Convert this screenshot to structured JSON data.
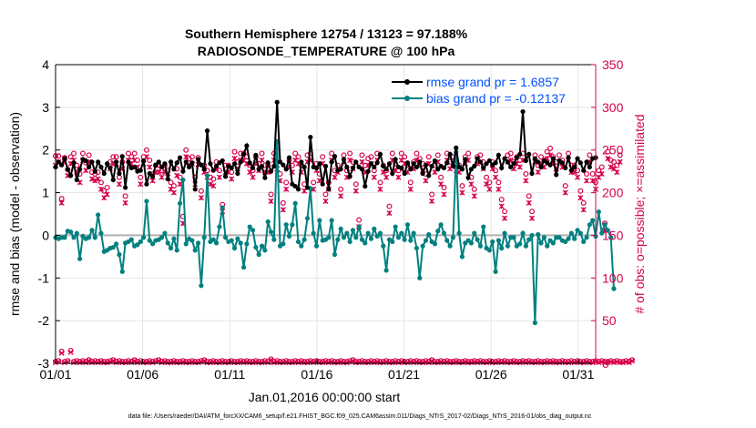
{
  "chart_data": {
    "type": "line",
    "title_line1": "Southern Hemisphere 12754 / 13123 = 97.188%",
    "title_line2": "RADIOSONDE_TEMPERATURE @ 100 hPa",
    "xlabel": "Jan.01,2016 00:00:00 start",
    "ylabel_left": "rmse and bias (model - observation)",
    "ylabel_right": "# of obs: o=possible; ×=assimilated",
    "footer": "data file: /Users/raeder/DAI/ATM_forcXX/CAM6_setup/f.e21.FHIST_BGC.f09_025.CAM6assim.011/Diags_NTrS_2017-02/Diags_NTrS_2016-01/obs_diag_output.nc",
    "xlim": [
      0,
      31
    ],
    "ylim_left": [
      -3,
      4
    ],
    "ylim_right": [
      0,
      350
    ],
    "x_ticks": [
      0,
      5,
      10,
      15,
      20,
      25,
      30
    ],
    "x_tick_labels": [
      "01/01",
      "01/06",
      "01/11",
      "01/16",
      "01/21",
      "01/26",
      "01/31"
    ],
    "y_ticks_left": [
      -3,
      -2,
      -1,
      0,
      1,
      2,
      3,
      4
    ],
    "y_ticks_right": [
      0,
      50,
      100,
      150,
      200,
      250,
      300,
      350
    ],
    "legend": [
      "rmse grand pr = 1.6857",
      "bias grand pr = -0.12137"
    ],
    "colors": {
      "rmse": "#000000",
      "bias": "#008080",
      "obs": "#d6004c",
      "legend_text": "#0050ff",
      "right_axis": "#d6004c",
      "zero_line": "#b0b0b0"
    },
    "series": [
      {
        "name": "rmse",
        "values": [
          1.6,
          1.72,
          1.65,
          1.8,
          1.55,
          1.4,
          1.7,
          1.3,
          1.55,
          1.78,
          1.75,
          1.6,
          1.72,
          1.5,
          1.72,
          1.6,
          1.45,
          1.68,
          1.58,
          1.3,
          1.72,
          1.45,
          1.85,
          1.12,
          1.72,
          1.58,
          1.6,
          1.5,
          1.52,
          1.75,
          1.2,
          1.45,
          1.38,
          1.65,
          1.72,
          1.6,
          1.68,
          1.32,
          1.72,
          1.55,
          1.7,
          1.82,
          1.5,
          1.72,
          1.6,
          1.7,
          1.08,
          1.78,
          1.65,
          1.55,
          2.45,
          1.68,
          1.52,
          1.62,
          1.7,
          1.75,
          1.38,
          1.62,
          1.58,
          1.68,
          1.45,
          1.72,
          1.9,
          2.1,
          1.7,
          1.58,
          1.88,
          1.55,
          1.62,
          1.35,
          1.7,
          1.5,
          1.62,
          3.12,
          1.72,
          1.65,
          1.55,
          1.82,
          1.2,
          1.15,
          1.08,
          1.72,
          1.6,
          1.12,
          2.3,
          1.6,
          1.58,
          1.68,
          1.2,
          1.62,
          1.08,
          1.72,
          1.85,
          1.52,
          1.55,
          1.78,
          1.6,
          1.38,
          1.58,
          1.72,
          1.6,
          1.55,
          1.15,
          1.5,
          1.68,
          1.6,
          1.7,
          1.9,
          1.62,
          1.55,
          1.68,
          1.45,
          1.78,
          1.6,
          1.58,
          1.45,
          1.7,
          1.55,
          1.68,
          1.6,
          1.72,
          1.45,
          1.65,
          1.4,
          1.62,
          1.75,
          1.55,
          1.62,
          1.58,
          1.7,
          1.9,
          1.62,
          2.05,
          1.6,
          1.55,
          1.78,
          1.35,
          1.55,
          1.62,
          1.8,
          1.72,
          1.58,
          1.68,
          1.75,
          1.65,
          1.7,
          1.88,
          1.58,
          1.8,
          1.72,
          1.6,
          1.68,
          1.82,
          1.9,
          2.9,
          1.75,
          1.9,
          1.45,
          1.8,
          1.72,
          1.6,
          1.75,
          1.7,
          1.65,
          1.8,
          1.42,
          1.75,
          1.7,
          1.58,
          1.82,
          1.52,
          1.6,
          1.8,
          1.7,
          1.52,
          1.72,
          1.6,
          1.8,
          1.82
        ]
      },
      {
        "name": "bias",
        "values": [
          -0.05,
          -0.08,
          -0.05,
          -0.05,
          0.1,
          0.08,
          -0.05,
          0.05,
          -0.55,
          -0.02,
          -0.08,
          -0.05,
          0.12,
          -0.05,
          0.48,
          0.05,
          -0.38,
          -0.35,
          -0.3,
          -0.28,
          -0.2,
          -0.45,
          -0.85,
          -0.18,
          -0.15,
          -0.1,
          -0.25,
          -0.22,
          -0.15,
          -0.05,
          0.8,
          -0.12,
          -0.2,
          -0.12,
          -0.1,
          -0.05,
          0.05,
          -0.18,
          -0.3,
          -0.08,
          -0.35,
          0.75,
          1.3,
          -0.2,
          -0.08,
          -0.12,
          -0.35,
          -0.18,
          -1.18,
          -0.05,
          1.4,
          -0.15,
          -0.1,
          -0.18,
          0.2,
          0.65,
          -0.05,
          -0.15,
          -0.12,
          -0.3,
          -0.08,
          -0.18,
          -0.75,
          -0.2,
          0.2,
          0.12,
          -0.28,
          -0.45,
          -0.25,
          -0.35,
          0.32,
          0.08,
          -0.1,
          2.2,
          -0.25,
          -0.2,
          0.25,
          -0.02,
          0.25,
          0.75,
          -0.15,
          -0.25,
          -0.1,
          0.4,
          1.1,
          0.05,
          -0.25,
          0.35,
          -0.12,
          -0.1,
          -0.05,
          0.35,
          -0.45,
          -0.1,
          0.15,
          -0.05,
          0.05,
          -0.15,
          0.12,
          -0.05,
          0.2,
          -0.1,
          -0.18,
          0.05,
          -0.08,
          0.15,
          -0.02,
          0.05,
          -0.25,
          -0.82,
          -0.1,
          -0.15,
          0.2,
          -0.05,
          0.05,
          -0.1,
          0.25,
          -0.12,
          0.05,
          -0.3,
          -1.0,
          -0.25,
          -0.12,
          0.02,
          -0.15,
          -0.2,
          0.1,
          0.25,
          0.05,
          -0.12,
          -0.25,
          -0.05,
          1.95,
          0.05,
          -0.5,
          -0.18,
          -0.12,
          -0.18,
          0.05,
          -0.1,
          -0.25,
          0.2,
          -0.3,
          -0.35,
          -0.15,
          -0.85,
          -0.12,
          -0.3,
          0.05,
          -0.25,
          -0.05,
          -0.05,
          -0.25,
          -0.2,
          0.05,
          -0.25,
          -0.1,
          0.0,
          -2.05,
          0.02,
          -0.18,
          -0.05,
          -0.25,
          -0.12,
          -0.18,
          -0.05,
          -0.05,
          -0.12,
          -0.15,
          -0.08,
          0.05,
          -0.08,
          0.12,
          0.05,
          -0.15,
          -0.05,
          0.25,
          0.35,
          -0.02,
          0.55,
          0.05,
          0.25,
          0.12,
          -0.05,
          -1.25
        ]
      },
      {
        "name": "obs_possible",
        "values": [
          243,
          243,
          193,
          241,
          227,
          242,
          246,
          232,
          222,
          246,
          235,
          244,
          224,
          222,
          224,
          212,
          202,
          206,
          236,
          242,
          242,
          218,
          236,
          196,
          246,
          242,
          246,
          238,
          218,
          242,
          250,
          238,
          222,
          232,
          232,
          226,
          232,
          226,
          212,
          208,
          228,
          218,
          172,
          250,
          240,
          242,
          218,
          241,
          202,
          232,
          226,
          218,
          216,
          236,
          226,
          186,
          232,
          232,
          224,
          248,
          236,
          246,
          246,
          242,
          232,
          226,
          242,
          234,
          246,
          232,
          232,
          198,
          246,
          236,
          222,
          188,
          212,
          238,
          232,
          246,
          242,
          232,
          210,
          244,
          246,
          212,
          234,
          222,
          242,
          198,
          212,
          246,
          226,
          232,
          204,
          244,
          226,
          246,
          236,
          210,
          168,
          244,
          232,
          240,
          242,
          226,
          246,
          212,
          232,
          226,
          184,
          246,
          234,
          226,
          246,
          242,
          232,
          212,
          236,
          246,
          240,
          234,
          222,
          242,
          198,
          232,
          244,
          218,
          206,
          246,
          236,
          242,
          234,
          232,
          208,
          242,
          246,
          218,
          204,
          242,
          244,
          236,
          218,
          212,
          236,
          226,
          212,
          192,
          178,
          244,
          246,
          236,
          242,
          238,
          246,
          222,
          196,
          178,
          244,
          232,
          242,
          238,
          248,
          252,
          242,
          236,
          244,
          238,
          208,
          246,
          232,
          232,
          226,
          202,
          188,
          222,
          244,
          222,
          212,
          226,
          230,
          164,
          248,
          238,
          236,
          232,
          244
        ]
      },
      {
        "name": "obs_assimilated",
        "values": [
          232,
          236,
          188,
          236,
          220,
          234,
          238,
          224,
          212,
          238,
          226,
          236,
          216,
          214,
          216,
          204,
          194,
          198,
          228,
          234,
          234,
          210,
          228,
          188,
          238,
          234,
          238,
          230,
          210,
          234,
          242,
          230,
          214,
          224,
          224,
          218,
          224,
          218,
          204,
          200,
          220,
          210,
          164,
          242,
          232,
          234,
          210,
          233,
          194,
          224,
          218,
          210,
          208,
          228,
          218,
          178,
          224,
          224,
          216,
          240,
          228,
          238,
          238,
          234,
          224,
          218,
          234,
          226,
          238,
          224,
          224,
          190,
          238,
          228,
          214,
          180,
          204,
          230,
          224,
          238,
          234,
          224,
          202,
          236,
          238,
          204,
          226,
          214,
          234,
          190,
          204,
          238,
          218,
          224,
          196,
          236,
          218,
          238,
          228,
          202,
          160,
          236,
          224,
          232,
          234,
          218,
          238,
          204,
          224,
          218,
          176,
          238,
          226,
          218,
          238,
          234,
          224,
          204,
          228,
          238,
          232,
          226,
          214,
          234,
          190,
          224,
          236,
          210,
          198,
          238,
          228,
          234,
          226,
          224,
          200,
          234,
          238,
          210,
          196,
          234,
          236,
          228,
          210,
          204,
          228,
          218,
          204,
          184,
          170,
          236,
          238,
          228,
          234,
          230,
          238,
          214,
          188,
          170,
          236,
          224,
          234,
          230,
          240,
          244,
          234,
          228,
          236,
          230,
          200,
          238,
          224,
          224,
          218,
          194,
          180,
          214,
          236,
          214,
          204,
          218,
          222,
          156,
          240,
          230,
          228,
          224,
          236
        ]
      },
      {
        "name": "obs_rejected_possible",
        "values": [
          2,
          3,
          14,
          2,
          3,
          15,
          2,
          3,
          2,
          3,
          2,
          4,
          2,
          3,
          2,
          3,
          2,
          2,
          3,
          4,
          2,
          3,
          2,
          2,
          3,
          2,
          4,
          2,
          3,
          2,
          2,
          3,
          2,
          3,
          4,
          2,
          3,
          2,
          2,
          3,
          2,
          2,
          3,
          2,
          2,
          3,
          2,
          2,
          3,
          4,
          2,
          2,
          3,
          2,
          2,
          3,
          2,
          2,
          3,
          2,
          2,
          3,
          2,
          3,
          2,
          2,
          3,
          2,
          2,
          3,
          2,
          5,
          2,
          3,
          2,
          2,
          3,
          2,
          2,
          3,
          2,
          3,
          2,
          2,
          3,
          2,
          3,
          2,
          2,
          3,
          2,
          3,
          2,
          2,
          3,
          2,
          2,
          3,
          4,
          2,
          2,
          3,
          2,
          2,
          3,
          2,
          3,
          2,
          2,
          3,
          2,
          2,
          3,
          2,
          3,
          2,
          2,
          3,
          2,
          3,
          2,
          2,
          3,
          2,
          4,
          2,
          2,
          3,
          2,
          3,
          2,
          2,
          3,
          2,
          2,
          3,
          2,
          2,
          3,
          2,
          3,
          2,
          2,
          3,
          2,
          2,
          3,
          2,
          3,
          2,
          2,
          3,
          2,
          2,
          3,
          2,
          3,
          2,
          2,
          3,
          2,
          2,
          3,
          2,
          3,
          2,
          2,
          3,
          2,
          2,
          3,
          2,
          3,
          2,
          2,
          3,
          2,
          2,
          3,
          2,
          3,
          2,
          2,
          3,
          2,
          3,
          2,
          2,
          3,
          2,
          4
        ]
      },
      {
        "name": "obs_rejected_assimilated",
        "values": [
          1,
          2,
          12,
          1,
          2,
          13,
          1,
          2,
          1,
          2,
          1,
          3,
          1,
          2,
          1,
          2,
          1,
          1,
          2,
          3,
          1,
          2,
          1,
          1,
          2,
          1,
          3,
          1,
          2,
          1,
          1,
          2,
          1,
          2,
          3,
          1,
          2,
          1,
          1,
          2,
          1,
          1,
          2,
          1,
          1,
          2,
          1,
          1,
          2,
          3,
          1,
          1,
          2,
          1,
          1,
          2,
          1,
          1,
          2,
          1,
          1,
          2,
          1,
          2,
          1,
          1,
          2,
          1,
          1,
          2,
          1,
          4,
          1,
          2,
          1,
          1,
          2,
          1,
          1,
          2,
          1,
          2,
          1,
          1,
          2,
          1,
          2,
          1,
          1,
          2,
          1,
          2,
          1,
          1,
          2,
          1,
          1,
          2,
          3,
          1,
          1,
          2,
          1,
          1,
          2,
          1,
          2,
          1,
          1,
          2,
          1,
          1,
          2,
          1,
          2,
          1,
          1,
          2,
          1,
          2,
          1,
          1,
          2,
          1,
          3,
          1,
          1,
          2,
          1,
          2,
          1,
          1,
          2,
          1,
          1,
          2,
          1,
          1,
          2,
          1,
          2,
          1,
          1,
          2,
          1,
          1,
          2,
          1,
          2,
          1,
          1,
          2,
          1,
          1,
          2,
          1,
          2,
          1,
          1,
          2,
          1,
          1,
          2,
          1,
          2,
          1,
          1,
          2,
          1,
          1,
          2,
          1,
          2,
          1,
          1,
          2,
          1,
          1,
          2,
          1,
          2,
          1,
          1,
          2,
          1,
          2,
          1,
          1,
          2,
          1,
          3
        ]
      }
    ]
  }
}
